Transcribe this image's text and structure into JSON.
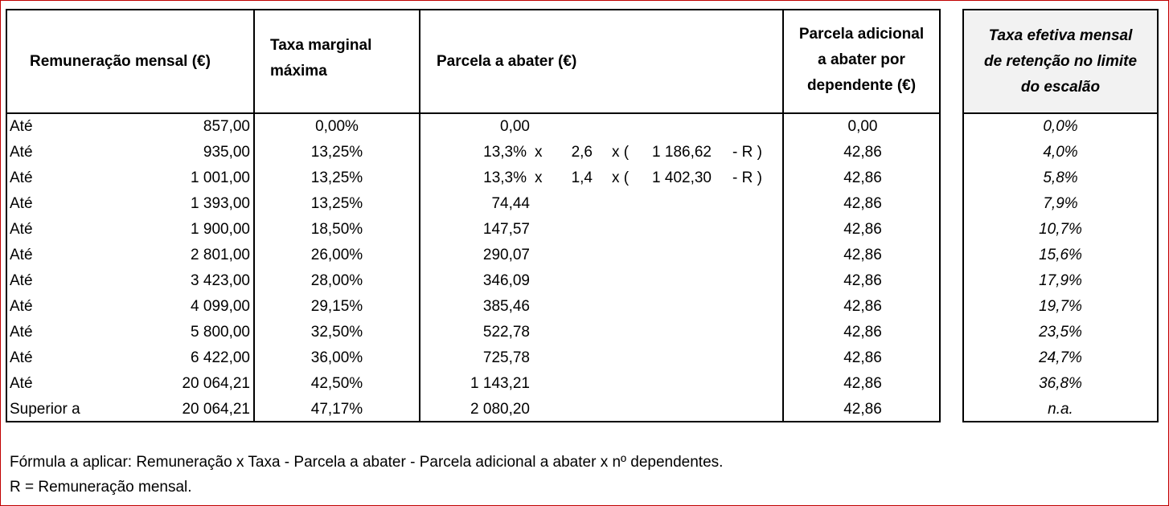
{
  "headers": {
    "remuneracao": "Remuneração mensal (€)",
    "taxa_line1": "Taxa marginal",
    "taxa_line2": "máxima",
    "parcela": "Parcela a abater (€)",
    "adicional_line1": "Parcela adicional",
    "adicional_line2": "a abater por",
    "adicional_line3": "dependente (€)",
    "efetiva_line1": "Taxa efetiva mensal",
    "efetiva_line2": "de retenção no limite",
    "efetiva_line3": "do escalão"
  },
  "rows": [
    {
      "label": "Até",
      "rem": "857,00",
      "taxa": "0,00%",
      "parcela": "0,00",
      "adicional": "0,00",
      "efetiva": "0,0%"
    },
    {
      "label": "Até",
      "rem": "935,00",
      "taxa": "13,25%",
      "parcela": "13,3%",
      "f_x1": "x",
      "f_mult": "2,6",
      "f_x2": "x (",
      "f_val": "1 186,62",
      "f_end": "- R )",
      "adicional": "42,86",
      "efetiva": "4,0%"
    },
    {
      "label": "Até",
      "rem": "1 001,00",
      "taxa": "13,25%",
      "parcela": "13,3%",
      "f_x1": "x",
      "f_mult": "1,4",
      "f_x2": "x (",
      "f_val": "1 402,30",
      "f_end": "- R )",
      "adicional": "42,86",
      "efetiva": "5,8%"
    },
    {
      "label": "Até",
      "rem": "1 393,00",
      "taxa": "13,25%",
      "parcela": "74,44",
      "adicional": "42,86",
      "efetiva": "7,9%"
    },
    {
      "label": "Até",
      "rem": "1 900,00",
      "taxa": "18,50%",
      "parcela": "147,57",
      "adicional": "42,86",
      "efetiva": "10,7%"
    },
    {
      "label": "Até",
      "rem": "2 801,00",
      "taxa": "26,00%",
      "parcela": "290,07",
      "adicional": "42,86",
      "efetiva": "15,6%"
    },
    {
      "label": "Até",
      "rem": "3 423,00",
      "taxa": "28,00%",
      "parcela": "346,09",
      "adicional": "42,86",
      "efetiva": "17,9%"
    },
    {
      "label": "Até",
      "rem": "4 099,00",
      "taxa": "29,15%",
      "parcela": "385,46",
      "adicional": "42,86",
      "efetiva": "19,7%"
    },
    {
      "label": "Até",
      "rem": "5 800,00",
      "taxa": "32,50%",
      "parcela": "522,78",
      "adicional": "42,86",
      "efetiva": "23,5%"
    },
    {
      "label": "Até",
      "rem": "6 422,00",
      "taxa": "36,00%",
      "parcela": "725,78",
      "adicional": "42,86",
      "efetiva": "24,7%"
    },
    {
      "label": "Até",
      "rem": "20 064,21",
      "taxa": "42,50%",
      "parcela": "1 143,21",
      "adicional": "42,86",
      "efetiva": "36,8%"
    },
    {
      "label": "Superior a",
      "rem": "20 064,21",
      "taxa": "47,17%",
      "parcela": "2 080,20",
      "adicional": "42,86",
      "efetiva": "n.a."
    }
  ],
  "footer": {
    "formula": "Fórmula a aplicar: Remuneração x Taxa - Parcela a abater - Parcela adicional a abater x nº dependentes.",
    "note": "R = Remuneração mensal."
  }
}
